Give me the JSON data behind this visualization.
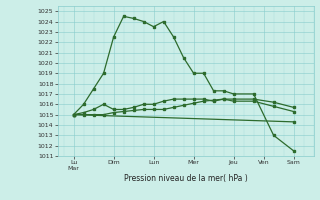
{
  "background_color": "#cceee8",
  "grid_color_major": "#88cccc",
  "grid_color_minor": "#aadddd",
  "line_color": "#2d6b2d",
  "xlabel": "Pression niveau de la mer( hPa )",
  "ylim_min": 1011,
  "ylim_max": 1025.5,
  "xlim_min": -0.3,
  "xlim_max": 12.5,
  "x_tick_positions": [
    0.5,
    2.5,
    4.5,
    6.5,
    8.5,
    10.0,
    11.5
  ],
  "x_tick_labels": [
    "Lu\nMar",
    "Dim",
    "Lun",
    "Mer",
    "Jeu",
    "Ven",
    "Sam"
  ],
  "series1_x": [
    0.5,
    1.0,
    1.5,
    2.0,
    2.5,
    3.0,
    3.5,
    4.0,
    4.5,
    5.0,
    5.5,
    6.0,
    6.5,
    7.0,
    7.5,
    8.0,
    8.5,
    9.5,
    10.5,
    11.5
  ],
  "series1_y": [
    1015.0,
    1016.0,
    1017.5,
    1019.0,
    1022.5,
    1024.5,
    1024.3,
    1024.0,
    1023.5,
    1024.0,
    1022.5,
    1020.5,
    1019.0,
    1019.0,
    1017.3,
    1017.3,
    1017.0,
    1017.0,
    1013.0,
    1011.5
  ],
  "series2_x": [
    0.5,
    1.0,
    1.5,
    2.0,
    2.5,
    3.0,
    3.5,
    4.0,
    4.5,
    5.0,
    5.5,
    6.0,
    6.5,
    7.0,
    7.5,
    8.0,
    8.5,
    9.5,
    10.5,
    11.5
  ],
  "series2_y": [
    1015.0,
    1015.2,
    1015.5,
    1016.0,
    1015.5,
    1015.5,
    1015.7,
    1016.0,
    1016.0,
    1016.3,
    1016.5,
    1016.5,
    1016.5,
    1016.5,
    1016.3,
    1016.5,
    1016.3,
    1016.3,
    1015.8,
    1015.3
  ],
  "series3_x": [
    0.5,
    1.0,
    1.5,
    2.0,
    2.5,
    3.0,
    3.5,
    4.0,
    4.5,
    5.0,
    5.5,
    6.0,
    6.5,
    7.0,
    7.5,
    8.0,
    8.5,
    9.5,
    10.5,
    11.5
  ],
  "series3_y": [
    1015.0,
    1015.0,
    1015.0,
    1015.0,
    1015.2,
    1015.3,
    1015.4,
    1015.5,
    1015.5,
    1015.5,
    1015.7,
    1015.9,
    1016.1,
    1016.3,
    1016.4,
    1016.5,
    1016.5,
    1016.5,
    1016.2,
    1015.7
  ],
  "series4_x": [
    0.5,
    11.5
  ],
  "series4_y": [
    1015.0,
    1014.3
  ]
}
